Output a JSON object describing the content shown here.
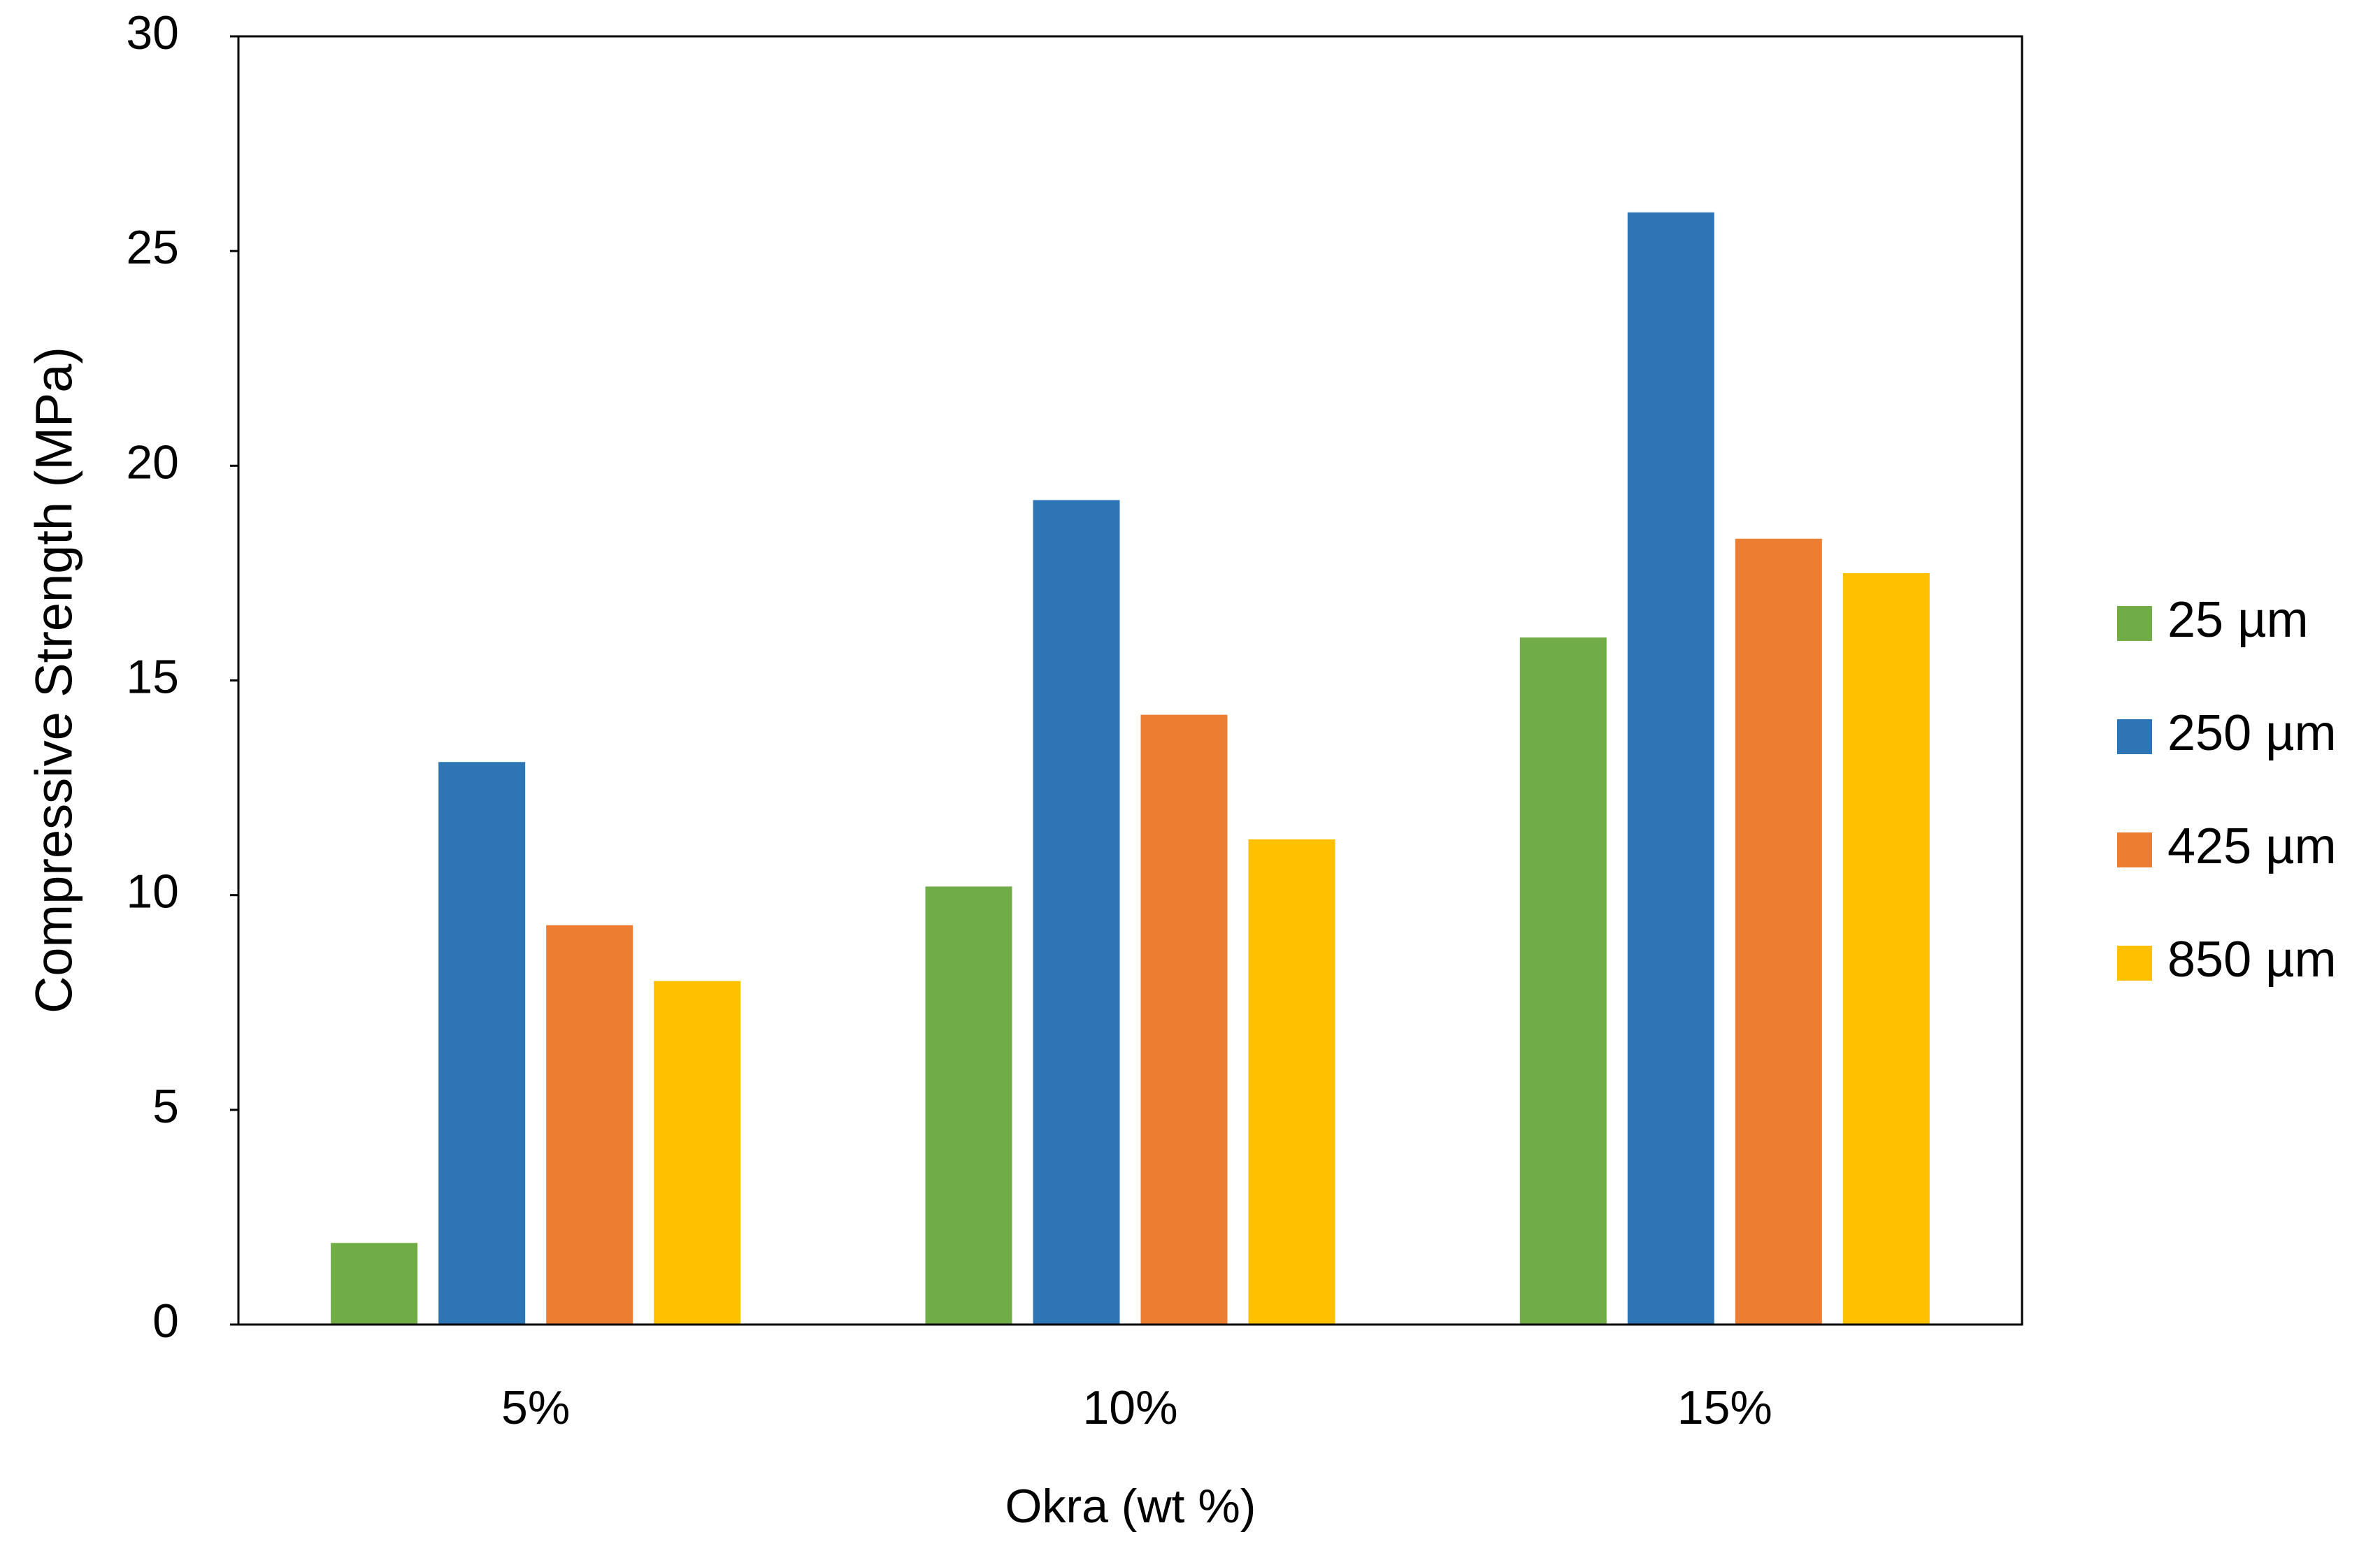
{
  "chart_data": {
    "type": "bar",
    "x_label": "Okra (wt %)",
    "y_label": "Compressive Strength  (MPa)",
    "categories": [
      "5%",
      "10%",
      "15%"
    ],
    "series": [
      {
        "name": "25 µm",
        "color": "#70ad47",
        "values": [
          1.9,
          10.2,
          16.0
        ]
      },
      {
        "name": "250 µm",
        "color": "#2e75b6",
        "values": [
          13.1,
          19.2,
          25.9
        ]
      },
      {
        "name": "425 µm",
        "color": "#ed7d31",
        "values": [
          9.3,
          14.2,
          18.3
        ]
      },
      {
        "name": "850 µm",
        "color": "#ffc000",
        "values": [
          8.0,
          11.3,
          17.5
        ]
      }
    ],
    "ylim": [
      0,
      30
    ],
    "yticks": [
      0,
      5,
      10,
      15,
      20,
      25,
      30
    ],
    "grid": false,
    "legend": "right"
  }
}
